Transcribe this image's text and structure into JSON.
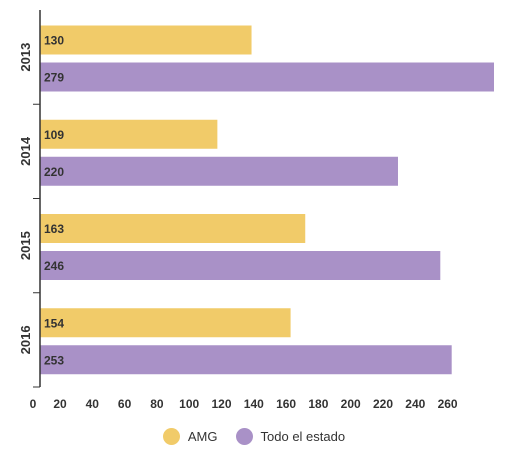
{
  "chart_data": {
    "type": "bar",
    "orientation": "horizontal",
    "categories": [
      "2013",
      "2014",
      "2015",
      "2016"
    ],
    "series": [
      {
        "name": "AMG",
        "values": [
          130,
          109,
          163,
          154
        ],
        "color": "#f1cb69"
      },
      {
        "name": "Todo el estado",
        "values": [
          279,
          220,
          246,
          253
        ],
        "color": "#a991c7"
      }
    ],
    "x_ticks": [
      0,
      20,
      40,
      60,
      80,
      100,
      120,
      140,
      160,
      180,
      200,
      220,
      240,
      260
    ],
    "xlim": [
      0,
      280
    ],
    "title": "",
    "xlabel": "",
    "ylabel": "",
    "grid": false,
    "legend_position": "bottom"
  }
}
